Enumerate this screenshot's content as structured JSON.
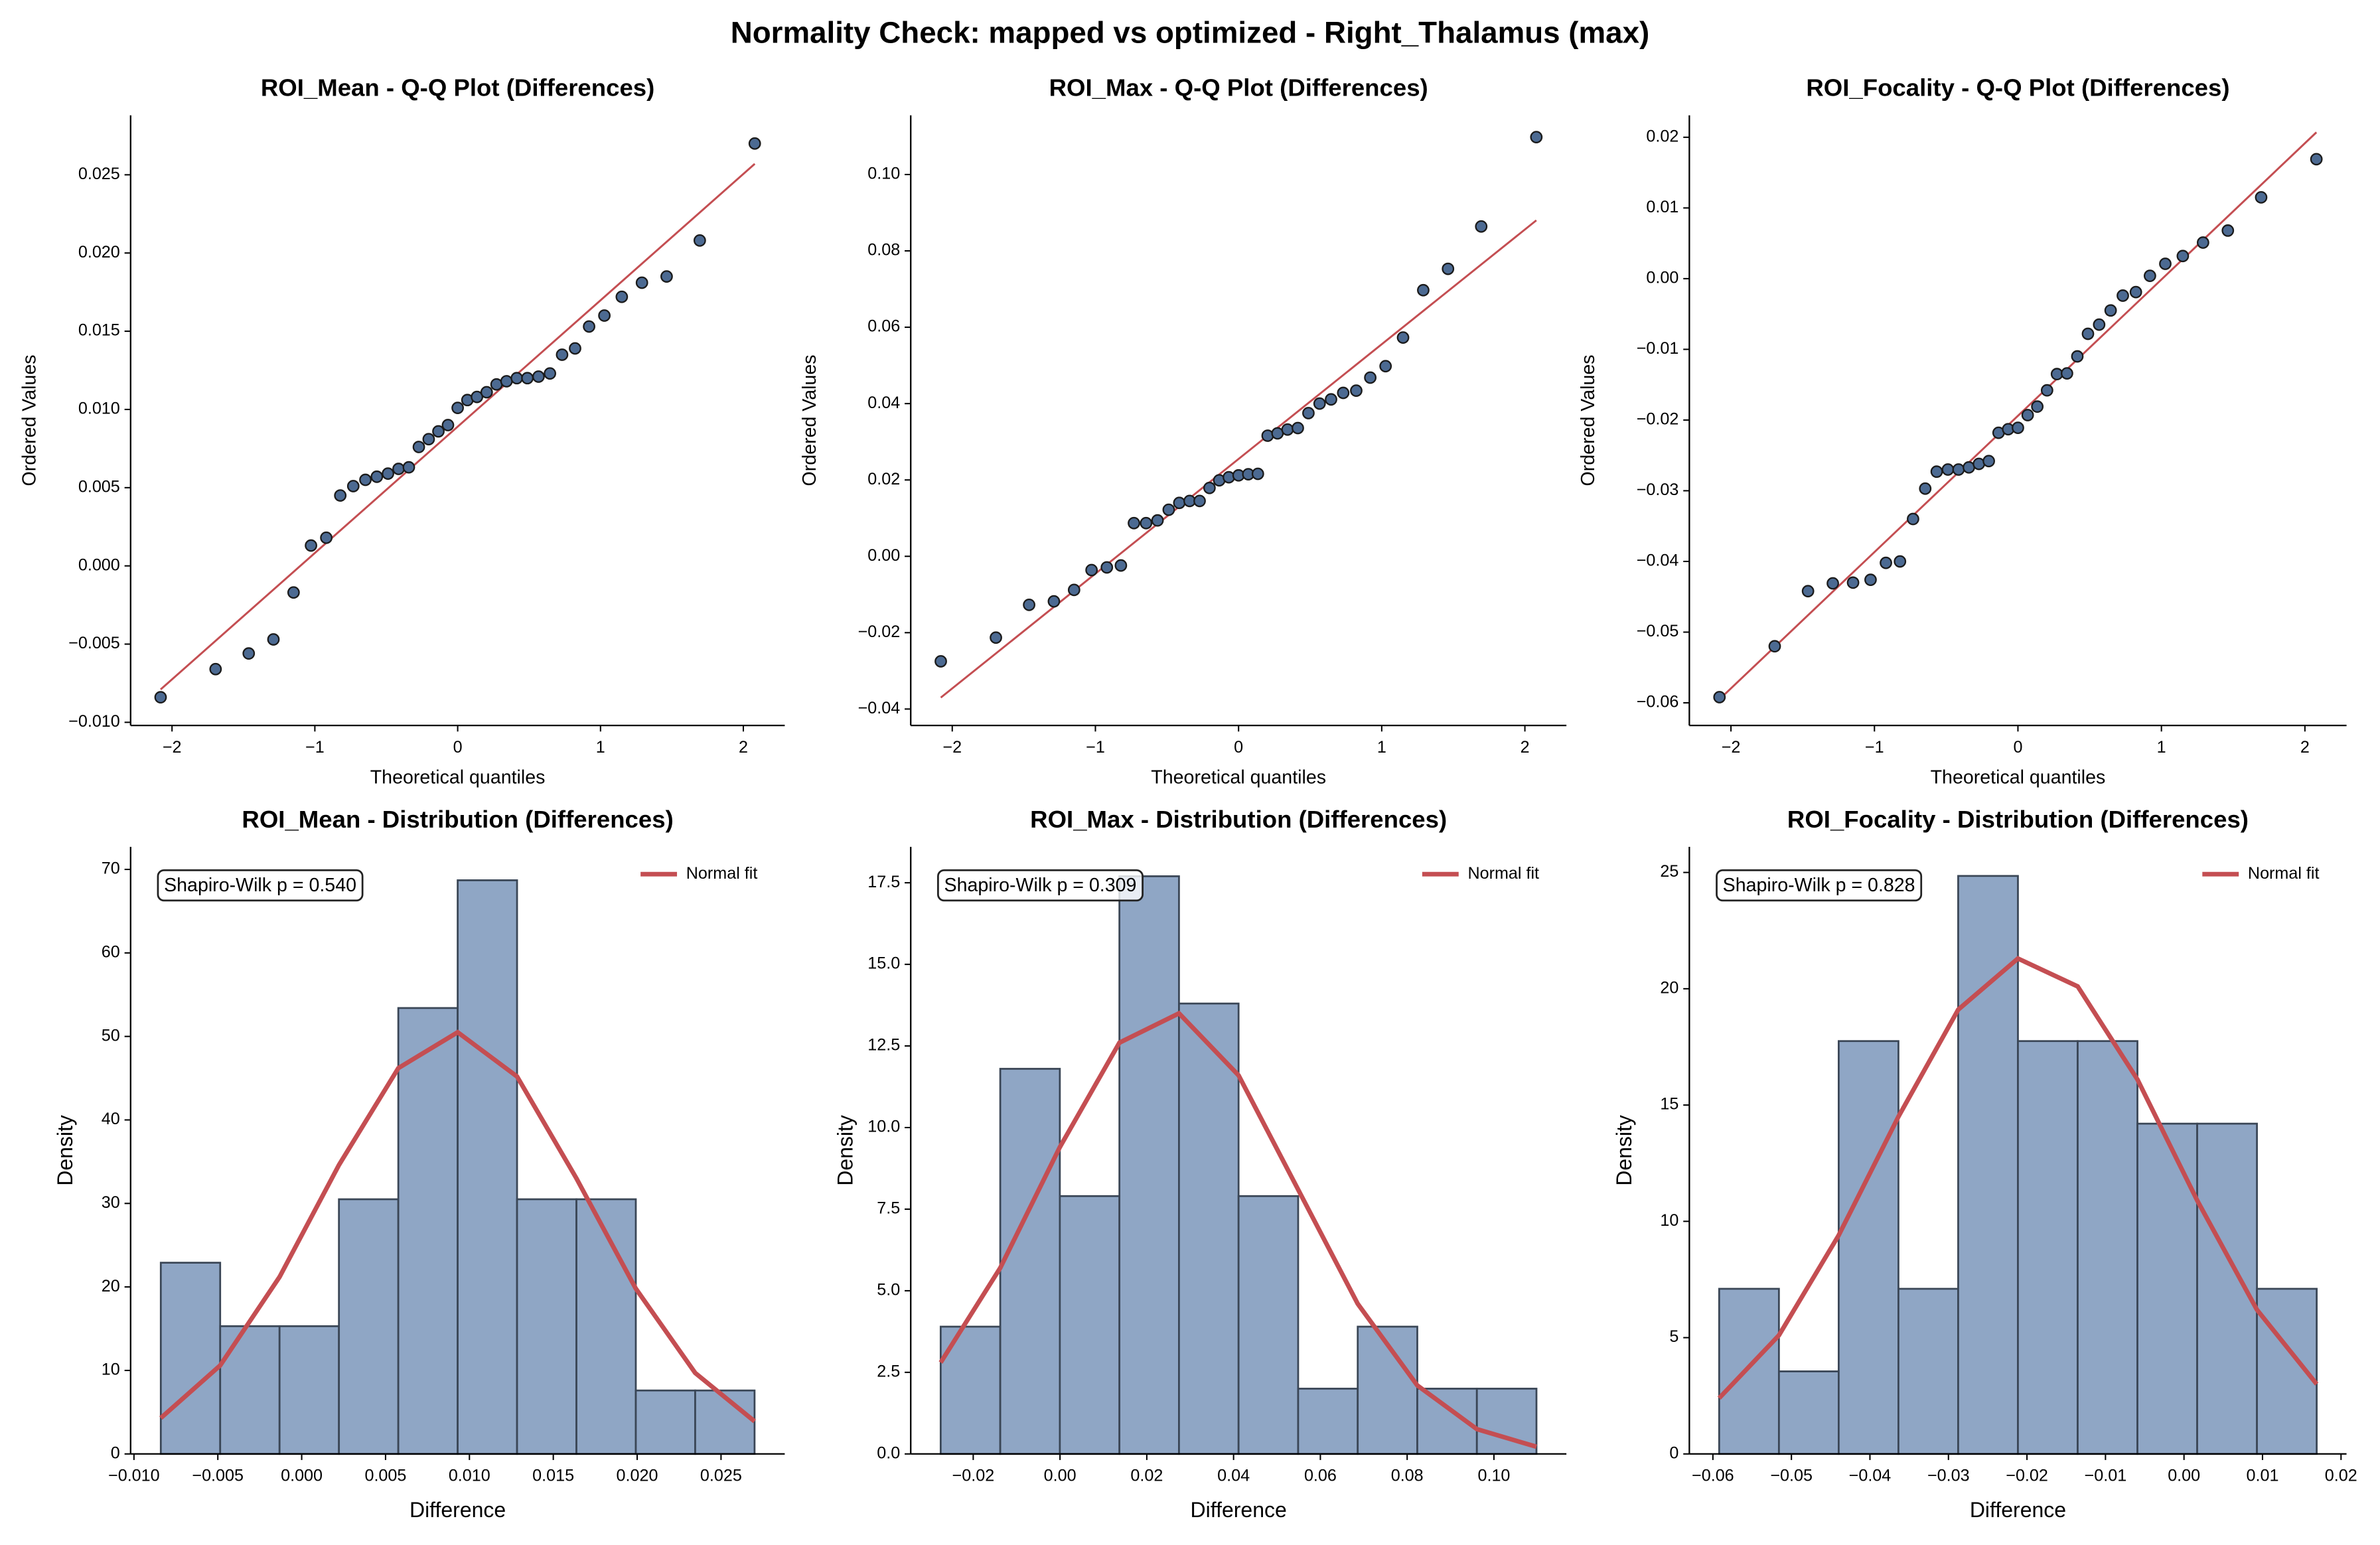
{
  "title": "Normality Check: mapped vs optimized - Right_Thalamus (max)",
  "chart_data": [
    {
      "type": "scatter",
      "title": "ROI_Mean - Q-Q Plot (Differences)",
      "xlabel": "Theoretical quantiles",
      "ylabel": "Ordered Values",
      "color": "#4c6a92",
      "x": [
        -2.08,
        -1.695,
        -1.463,
        -1.29,
        -1.149,
        -1.027,
        -0.92,
        -0.822,
        -0.731,
        -0.646,
        -0.566,
        -0.488,
        -0.414,
        -0.342,
        -0.272,
        -0.203,
        -0.135,
        -0.068,
        0,
        0.068,
        0.135,
        0.203,
        0.272,
        0.342,
        0.414,
        0.488,
        0.566,
        0.646,
        0.731,
        0.822,
        0.92,
        1.027,
        1.149,
        1.29,
        1.463,
        1.695,
        2.08
      ],
      "values": [
        -0.0084,
        -0.0066,
        -0.0056,
        -0.0047,
        -0.0017,
        0.0013,
        0.0018,
        0.0045,
        0.0051,
        0.0055,
        0.0057,
        0.0059,
        0.0062,
        0.0063,
        0.0076,
        0.0081,
        0.0086,
        0.009,
        0.0101,
        0.0106,
        0.0108,
        0.0111,
        0.0116,
        0.0118,
        0.012,
        0.012,
        0.0121,
        0.0123,
        0.0135,
        0.0139,
        0.0153,
        0.016,
        0.0172,
        0.0181,
        0.0185,
        0.0208,
        0.027
      ],
      "fit": {
        "x": [
          -2.08,
          2.08
        ],
        "y": [
          -0.0079,
          0.0257
        ],
        "color": "#c44e52"
      },
      "xlim": [
        -2.29,
        2.29
      ],
      "ylim": [
        -0.0102,
        0.0288
      ],
      "xticks": [
        {
          "value": -2,
          "label": "−2"
        },
        {
          "value": -1,
          "label": "−1"
        },
        0,
        1,
        2
      ],
      "yticks": [
        {
          "value": -0.01,
          "label": "−0.010"
        },
        {
          "value": -0.005,
          "label": "−0.005"
        },
        {
          "value": 0,
          "label": "0.000"
        },
        {
          "value": 0.005,
          "label": "0.005"
        },
        {
          "value": 0.01,
          "label": "0.010"
        },
        {
          "value": 0.015,
          "label": "0.015"
        },
        {
          "value": 0.02,
          "label": "0.020"
        },
        {
          "value": 0.025,
          "label": "0.025"
        }
      ]
    },
    {
      "type": "scatter",
      "title": "ROI_Max - Q-Q Plot (Differences)",
      "xlabel": "Theoretical quantiles",
      "ylabel": "Ordered Values",
      "color": "#4c6a92",
      "x": [
        -2.08,
        -1.695,
        -1.463,
        -1.29,
        -1.149,
        -1.027,
        -0.92,
        -0.822,
        -0.731,
        -0.646,
        -0.566,
        -0.488,
        -0.414,
        -0.342,
        -0.272,
        -0.203,
        -0.135,
        -0.068,
        0,
        0.068,
        0.135,
        0.203,
        0.272,
        0.342,
        0.414,
        0.488,
        0.566,
        0.646,
        0.731,
        0.822,
        0.92,
        1.027,
        1.149,
        1.29,
        1.463,
        1.695,
        2.08
      ],
      "values": [
        -0.0275,
        -0.0213,
        -0.0127,
        -0.0118,
        -0.0088,
        -0.0036,
        -0.0029,
        -0.0024,
        0.0087,
        0.0087,
        0.0094,
        0.0122,
        0.014,
        0.0145,
        0.0145,
        0.0179,
        0.0199,
        0.0207,
        0.0212,
        0.0215,
        0.0216,
        0.0316,
        0.0322,
        0.0332,
        0.0336,
        0.0375,
        0.04,
        0.0411,
        0.0428,
        0.0434,
        0.0468,
        0.0498,
        0.0573,
        0.0697,
        0.0753,
        0.0864,
        0.1098
      ],
      "fit": {
        "x": [
          -2.08,
          2.08
        ],
        "y": [
          -0.037,
          0.088
        ],
        "color": "#c44e52"
      },
      "xlim": [
        -2.29,
        2.29
      ],
      "ylim": [
        -0.0443,
        0.1155
      ],
      "xticks": [
        {
          "value": -2,
          "label": "−2"
        },
        {
          "value": -1,
          "label": "−1"
        },
        0,
        1,
        2
      ],
      "yticks": [
        {
          "value": -0.04,
          "label": "−0.04"
        },
        {
          "value": -0.02,
          "label": "−0.02"
        },
        {
          "value": 0,
          "label": "0.00"
        },
        {
          "value": 0.02,
          "label": "0.02"
        },
        {
          "value": 0.04,
          "label": "0.04"
        },
        {
          "value": 0.06,
          "label": "0.06"
        },
        {
          "value": 0.08,
          "label": "0.08"
        },
        {
          "value": 0.1,
          "label": "0.10"
        }
      ]
    },
    {
      "type": "scatter",
      "title": "ROI_Focality - Q-Q Plot (Differences)",
      "xlabel": "Theoretical quantiles",
      "ylabel": "Ordered Values",
      "color": "#4c6a92",
      "x": [
        -2.08,
        -1.695,
        -1.463,
        -1.29,
        -1.149,
        -1.027,
        -0.92,
        -0.822,
        -0.731,
        -0.646,
        -0.566,
        -0.488,
        -0.414,
        -0.342,
        -0.272,
        -0.203,
        -0.135,
        -0.068,
        0,
        0.068,
        0.135,
        0.203,
        0.272,
        0.342,
        0.414,
        0.488,
        0.566,
        0.646,
        0.731,
        0.822,
        0.92,
        1.027,
        1.149,
        1.29,
        1.463,
        1.695,
        2.08
      ],
      "values": [
        -0.0592,
        -0.052,
        -0.0442,
        -0.0431,
        -0.043,
        -0.0426,
        -0.0402,
        -0.04,
        -0.034,
        -0.0297,
        -0.0273,
        -0.027,
        -0.027,
        -0.0267,
        -0.0262,
        -0.0258,
        -0.0218,
        -0.0213,
        -0.0211,
        -0.0193,
        -0.0181,
        -0.0158,
        -0.0135,
        -0.0134,
        -0.011,
        -0.0078,
        -0.0065,
        -0.0045,
        -0.0024,
        -0.0019,
        0.0004,
        0.0021,
        0.0032,
        0.0051,
        0.0068,
        0.0115,
        0.0169
      ],
      "fit": {
        "x": [
          -2.08,
          2.08
        ],
        "y": [
          -0.0595,
          0.0207
        ],
        "color": "#c44e52"
      },
      "xlim": [
        -2.29,
        2.29
      ],
      "ylim": [
        -0.0632,
        0.0231
      ],
      "xticks": [
        {
          "value": -2,
          "label": "−2"
        },
        {
          "value": -1,
          "label": "−1"
        },
        0,
        1,
        2
      ],
      "yticks": [
        {
          "value": -0.06,
          "label": "−0.06"
        },
        {
          "value": -0.05,
          "label": "−0.05"
        },
        {
          "value": -0.04,
          "label": "−0.04"
        },
        {
          "value": -0.03,
          "label": "−0.03"
        },
        {
          "value": -0.02,
          "label": "−0.02"
        },
        {
          "value": -0.01,
          "label": "−0.01"
        },
        {
          "value": 0,
          "label": "0.00"
        },
        {
          "value": 0.01,
          "label": "0.01"
        },
        {
          "value": 0.02,
          "label": "0.02"
        }
      ]
    },
    {
      "type": "histogram",
      "title": "ROI_Mean - Distribution (Differences)",
      "xlabel": "Difference",
      "ylabel": "Density",
      "color": "#8fa6c5",
      "annotation": "Shapiro-Wilk p = 0.540",
      "legend": "upper right",
      "bins": [
        -0.0084,
        -0.00486,
        -0.00132,
        0.00222,
        0.00576,
        0.0093,
        0.01284,
        0.01638,
        0.01992,
        0.02346,
        0.027
      ],
      "values": [
        22.9,
        15.3,
        15.3,
        30.5,
        53.4,
        68.7,
        30.5,
        30.5,
        7.6,
        7.6
      ],
      "fit": {
        "name": "Normal fit",
        "color": "#c44e52",
        "x": [
          -0.0084,
          -0.00486,
          -0.00132,
          0.00222,
          0.00576,
          0.0093,
          0.01284,
          0.01638,
          0.01992,
          0.02346,
          0.027
        ],
        "y": [
          4.3,
          10.6,
          21.2,
          34.6,
          46.2,
          50.5,
          45.2,
          33,
          19.8,
          9.7,
          3.9
        ]
      },
      "xlim": [
        -0.0102,
        0.0288
      ],
      "ylim": [
        0,
        72.7
      ],
      "xticks": [
        {
          "value": -0.01,
          "label": "−0.010"
        },
        {
          "value": -0.005,
          "label": "−0.005"
        },
        {
          "value": 0,
          "label": "0.000"
        },
        {
          "value": 0.005,
          "label": "0.005"
        },
        {
          "value": 0.01,
          "label": "0.010"
        },
        {
          "value": 0.015,
          "label": "0.015"
        },
        {
          "value": 0.02,
          "label": "0.020"
        },
        {
          "value": 0.025,
          "label": "0.025"
        }
      ],
      "yticks": [
        0,
        10,
        20,
        30,
        40,
        50,
        60,
        70
      ]
    },
    {
      "type": "histogram",
      "title": "ROI_Max - Distribution (Differences)",
      "xlabel": "Difference",
      "ylabel": "Density",
      "color": "#8fa6c5",
      "annotation": "Shapiro-Wilk p = 0.309",
      "legend": "upper right",
      "bins": [
        -0.0275,
        -0.01377,
        -4e-05,
        0.01369,
        0.02742,
        0.04115,
        0.05488,
        0.06861,
        0.08234,
        0.09607,
        0.1098
      ],
      "values": [
        3.9,
        11.8,
        7.9,
        17.7,
        13.8,
        7.9,
        2,
        3.9,
        2,
        2
      ],
      "fit": {
        "name": "Normal fit",
        "color": "#c44e52",
        "x": [
          -0.0275,
          -0.01377,
          -4e-05,
          0.01369,
          0.02742,
          0.04115,
          0.05488,
          0.06861,
          0.08234,
          0.09607,
          0.1098
        ],
        "y": [
          2.8,
          5.7,
          9.4,
          12.6,
          13.5,
          11.6,
          8.1,
          4.6,
          2.1,
          0.76,
          0.22
        ]
      },
      "xlim": [
        -0.0344,
        0.1167
      ],
      "ylim": [
        0,
        18.6
      ],
      "xticks": [
        {
          "value": -0.02,
          "label": "−0.02"
        },
        {
          "value": 0,
          "label": "0.00"
        },
        {
          "value": 0.02,
          "label": "0.02"
        },
        {
          "value": 0.04,
          "label": "0.04"
        },
        {
          "value": 0.06,
          "label": "0.06"
        },
        {
          "value": 0.08,
          "label": "0.08"
        },
        {
          "value": 0.1,
          "label": "0.10"
        }
      ],
      "yticks": [
        {
          "value": 0,
          "label": "0.0"
        },
        2.5,
        {
          "value": 5,
          "label": "5.0"
        },
        7.5,
        {
          "value": 10,
          "label": "10.0"
        },
        12.5,
        {
          "value": 15,
          "label": "15.0"
        },
        17.5
      ]
    },
    {
      "type": "histogram",
      "title": "ROI_Focality - Distribution (Differences)",
      "xlabel": "Difference",
      "ylabel": "Density",
      "color": "#8fa6c5",
      "annotation": "Shapiro-Wilk p = 0.828",
      "legend": "upper right",
      "bins": [
        -0.0592,
        -0.05159,
        -0.04398,
        -0.03637,
        -0.02876,
        -0.02115,
        -0.01354,
        -0.00593,
        0.00168,
        0.00929,
        0.0169
      ],
      "values": [
        7.1,
        3.55,
        17.75,
        7.1,
        24.85,
        17.75,
        17.75,
        14.2,
        14.2,
        7.1
      ],
      "fit": {
        "name": "Normal fit",
        "color": "#c44e52",
        "x": [
          -0.0592,
          -0.05159,
          -0.04398,
          -0.03637,
          -0.02876,
          -0.02115,
          -0.01354,
          -0.00593,
          0.00168,
          0.00929,
          0.0169
        ],
        "y": [
          2.4,
          5.1,
          9.4,
          14.5,
          19.1,
          21.3,
          20.1,
          16.1,
          10.9,
          6.2,
          3
        ]
      },
      "xlim": [
        -0.063,
        0.0207
      ],
      "ylim": [
        0,
        26.1
      ],
      "xticks": [
        {
          "value": -0.06,
          "label": "−0.06"
        },
        {
          "value": -0.05,
          "label": "−0.05"
        },
        {
          "value": -0.04,
          "label": "−0.04"
        },
        {
          "value": -0.03,
          "label": "−0.03"
        },
        {
          "value": -0.02,
          "label": "−0.02"
        },
        {
          "value": -0.01,
          "label": "−0.01"
        },
        {
          "value": 0,
          "label": "0.00"
        },
        {
          "value": 0.01,
          "label": "0.01"
        },
        {
          "value": 0.02,
          "label": "0.02"
        }
      ],
      "yticks": [
        0,
        5,
        10,
        15,
        20,
        25
      ]
    }
  ]
}
